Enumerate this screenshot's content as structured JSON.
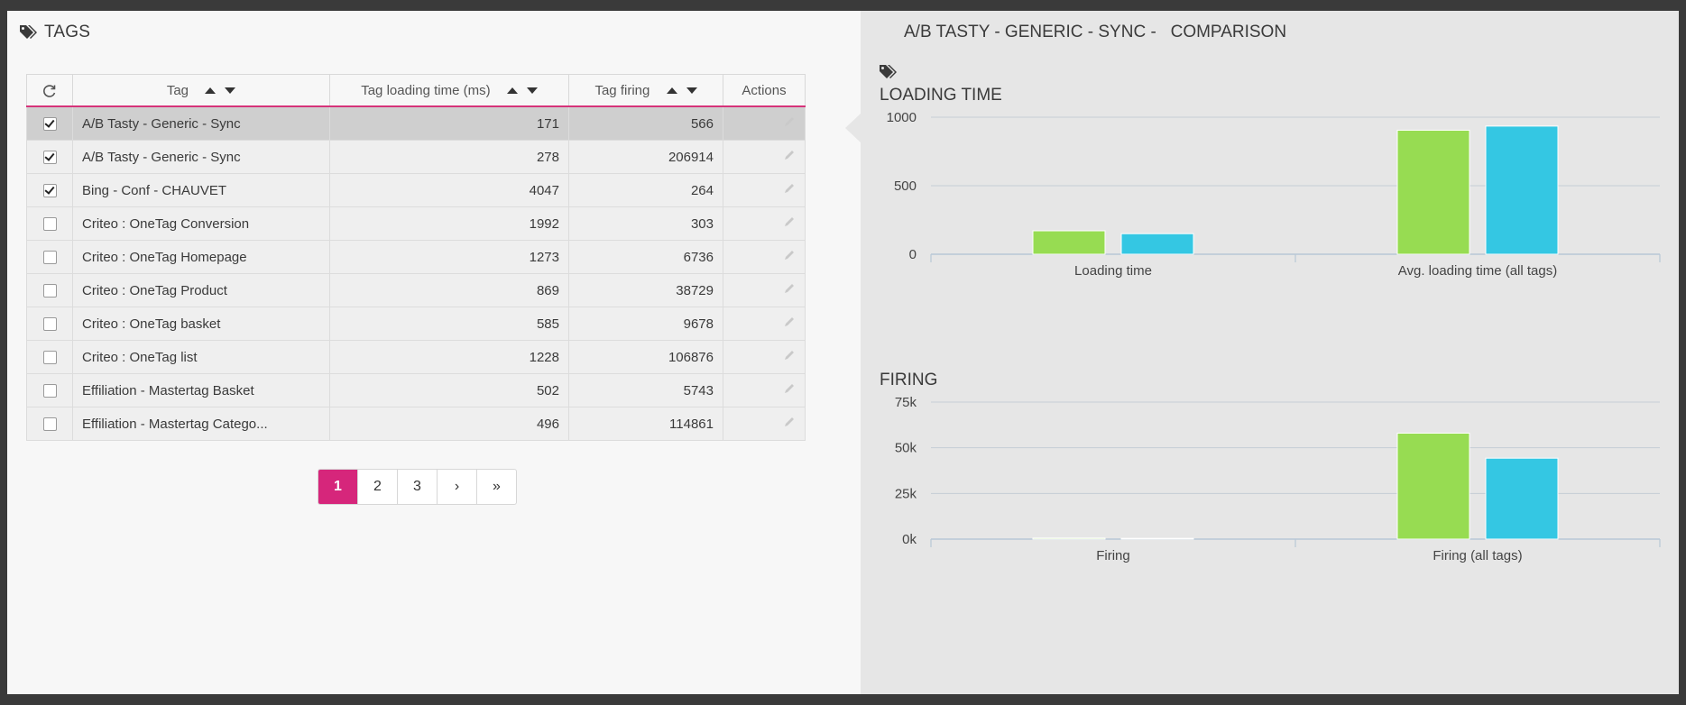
{
  "left": {
    "title": "TAGS",
    "columns": {
      "tag": "Tag",
      "loading": "Tag loading time (ms)",
      "firing": "Tag firing",
      "actions": "Actions"
    },
    "rows": [
      {
        "name": "A/B Tasty - Generic - Sync",
        "loading": "171",
        "firing": "566",
        "checked": true,
        "selected": true
      },
      {
        "name": "A/B Tasty - Generic - Sync",
        "loading": "278",
        "firing": "206914",
        "checked": true,
        "selected": false
      },
      {
        "name": "Bing - Conf - CHAUVET",
        "loading": "4047",
        "firing": "264",
        "checked": true,
        "selected": false
      },
      {
        "name": "Criteo : OneTag Conversion",
        "loading": "1992",
        "firing": "303",
        "checked": false,
        "selected": false
      },
      {
        "name": "Criteo : OneTag Homepage",
        "loading": "1273",
        "firing": "6736",
        "checked": false,
        "selected": false
      },
      {
        "name": "Criteo : OneTag Product",
        "loading": "869",
        "firing": "38729",
        "checked": false,
        "selected": false
      },
      {
        "name": "Criteo : OneTag basket",
        "loading": "585",
        "firing": "9678",
        "checked": false,
        "selected": false
      },
      {
        "name": "Criteo : OneTag list",
        "loading": "1228",
        "firing": "106876",
        "checked": false,
        "selected": false
      },
      {
        "name": "Effiliation - Mastertag Basket",
        "loading": "502",
        "firing": "5743",
        "checked": false,
        "selected": false
      },
      {
        "name": "Effiliation - Mastertag Catego...",
        "loading": "496",
        "firing": "114861",
        "checked": false,
        "selected": false
      }
    ],
    "pagination": {
      "pages": [
        "1",
        "2",
        "3"
      ],
      "active": "1",
      "next": "›",
      "last": "»"
    }
  },
  "right": {
    "title": "A/B TASTY - GENERIC - SYNC -   COMPARISON"
  },
  "colors": {
    "accent": "#d6267b",
    "series_green": "#97dc52",
    "series_blue": "#34c7e3"
  },
  "chart_data": [
    {
      "type": "bar",
      "title": "LOADING TIME",
      "categories": [
        "Loading time",
        "Avg. loading time (all tags)"
      ],
      "series": [
        {
          "values": [
            171,
            905
          ]
        },
        {
          "values": [
            150,
            935
          ]
        }
      ],
      "ylim": [
        0,
        1000
      ],
      "yticks": [
        0,
        500,
        1000
      ],
      "ytick_labels": [
        "0",
        "500",
        "1000"
      ],
      "grid": true
    },
    {
      "type": "bar",
      "title": "FIRING",
      "categories": [
        "Firing",
        "Firing (all tags)"
      ],
      "series": [
        {
          "values": [
            566,
            58000
          ]
        },
        {
          "values": [
            400,
            44300
          ]
        }
      ],
      "ylim": [
        0,
        75000
      ],
      "yticks": [
        0,
        25000,
        50000,
        75000
      ],
      "ytick_labels": [
        "0k",
        "25k",
        "50k",
        "75k"
      ],
      "grid": true
    }
  ]
}
